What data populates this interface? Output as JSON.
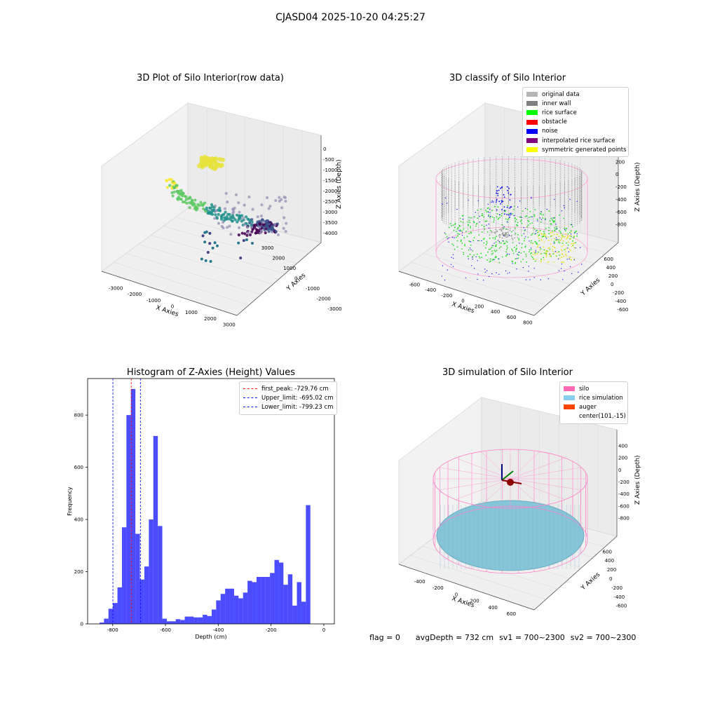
{
  "suptitle": "CJASD04 2025-10-20 04:25:27",
  "panels": {
    "tl": {
      "title": "3D Plot of Silo Interior(row data)",
      "xlabel": "X Axies",
      "ylabel": "Y Axies",
      "zlabel": "Z Axies (Depth)",
      "x_ticks": [
        "-3000",
        "-2000",
        "-1000",
        "0",
        "1000",
        "2000",
        "3000"
      ],
      "y_ticks": [
        "-3000",
        "-2000",
        "-1000",
        "0",
        "1000",
        "2000",
        "3000"
      ],
      "z_ticks": [
        "0",
        "-500",
        "-1000",
        "-1500",
        "-2000",
        "-2500",
        "-3000",
        "-3500",
        "-4000"
      ]
    },
    "tr": {
      "title": "3D classify of Silo Interior",
      "xlabel": "X Axies",
      "ylabel": "Y Axies",
      "zlabel": "Z Axies (Depth)",
      "x_ticks": [
        "-600",
        "-400",
        "-200",
        "0",
        "200",
        "400",
        "600",
        "800"
      ],
      "y_ticks": [
        "-600",
        "-400",
        "-200",
        "0",
        "200",
        "400",
        "600"
      ],
      "z_ticks": [
        "200",
        "0",
        "-200",
        "-400",
        "-600",
        "-800"
      ],
      "legend": [
        {
          "label": "original data",
          "color": "#b5b5b5"
        },
        {
          "label": "inner wall",
          "color": "#808080"
        },
        {
          "label": "rice surface",
          "color": "#00ff00"
        },
        {
          "label": "obstacle",
          "color": "#ff0000"
        },
        {
          "label": "noise",
          "color": "#0000ff"
        },
        {
          "label": "interpolated rice surface",
          "color": "#800080"
        },
        {
          "label": "symmetric generated points",
          "color": "#ffff00"
        }
      ]
    },
    "br": {
      "title": "3D simulation of Silo Interior",
      "xlabel": "X Axies",
      "ylabel": "Y Axies",
      "zlabel": "Z Axies (Depth)",
      "x_ticks": [
        "-400",
        "-200",
        "0",
        "200",
        "400",
        "600"
      ],
      "y_ticks": [
        "-600",
        "-400",
        "-200",
        "0",
        "200",
        "400",
        "600"
      ],
      "z_ticks": [
        "400",
        "200",
        "0",
        "-200",
        "-400",
        "-600",
        "-800"
      ],
      "legend": [
        {
          "label": "silo",
          "color": "#ff69b4"
        },
        {
          "label": "rice simulation",
          "color": "#87ceeb"
        },
        {
          "label": "auger",
          "color": "#ff4500"
        },
        {
          "label": "center(101,-15)",
          "color": ""
        }
      ]
    }
  },
  "chart_data": {
    "type": "bar",
    "title": "Histogram of Z-Axies (Height) Values",
    "xlabel": "Depth (cm)",
    "ylabel": "Frequency",
    "xlim": [
      -895,
      40
    ],
    "ylim": [
      0,
      940
    ],
    "x_ticks": [
      -800,
      -600,
      -400,
      -200,
      0
    ],
    "y_ticks": [
      0,
      200,
      400,
      600,
      800
    ],
    "bin_width": 17,
    "bin_left_edges": [
      -850,
      -833,
      -816,
      -799,
      -782,
      -765,
      -748,
      -731,
      -714,
      -697,
      -680,
      -663,
      -646,
      -629,
      -612,
      -595,
      -578,
      -561,
      -544,
      -527,
      -510,
      -493,
      -476,
      -459,
      -442,
      -425,
      -408,
      -391,
      -374,
      -357,
      -340,
      -323,
      -306,
      -289,
      -272,
      -255,
      -238,
      -221,
      -204,
      -187,
      -170,
      -153,
      -136,
      -119,
      -102,
      -85,
      -68,
      -51,
      -34,
      -17
    ],
    "values": [
      5,
      20,
      58,
      80,
      140,
      370,
      800,
      900,
      345,
      170,
      220,
      400,
      720,
      375,
      20,
      10,
      10,
      18,
      15,
      28,
      28,
      25,
      25,
      35,
      30,
      55,
      90,
      115,
      135,
      135,
      108,
      98,
      120,
      165,
      160,
      180,
      180,
      180,
      195,
      245,
      235,
      150,
      190,
      70,
      160,
      85,
      455,
      0,
      0,
      0
    ],
    "bar_color": "#0000ff",
    "lines": [
      {
        "label": "first_peak: -729.76 cm",
        "x": -729.76,
        "color": "#ff0000"
      },
      {
        "label": "Upper_limit: -695.02 cm",
        "x": -695.02,
        "color": "#0000ff"
      },
      {
        "label": "Lower_limit: -799.23 cm",
        "x": -799.23,
        "color": "#0000ff"
      }
    ]
  },
  "footer": {
    "flag": "flag = 0",
    "avg": "avgDepth = 732 cm",
    "sv1": "sv1 = 700~2300",
    "sv2": "sv2 = 700~2300"
  }
}
